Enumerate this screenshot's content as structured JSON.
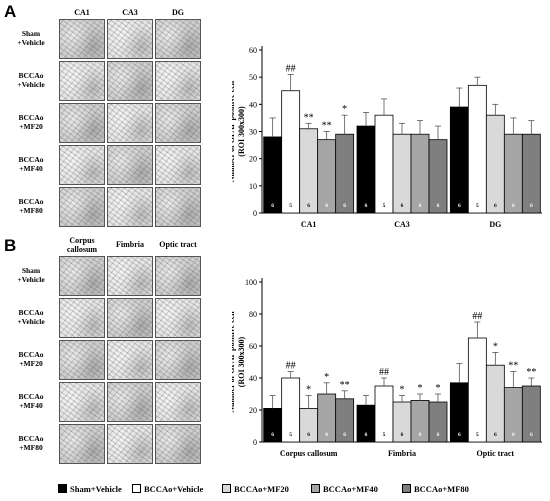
{
  "panel_a": {
    "letter": "A",
    "columns": [
      "CA1",
      "CA3",
      "DG"
    ],
    "rows": [
      [
        "Sham",
        "+Vehicle"
      ],
      [
        "BCCAo",
        "+Vehicle"
      ],
      [
        "BCCAo",
        "+MF20"
      ],
      [
        "BCCAo",
        "+MF40"
      ],
      [
        "BCCAo",
        "+MF80"
      ]
    ]
  },
  "panel_b": {
    "letter": "B",
    "columns": [
      [
        "Corpus",
        "callosum"
      ],
      [
        "Fimbria"
      ],
      [
        "Optic tract"
      ]
    ],
    "rows": [
      [
        "Sham",
        "+Vehicle"
      ],
      [
        "BCCAo",
        "+Vehicle"
      ],
      [
        "BCCAo",
        "+MF20"
      ],
      [
        "BCCAo",
        "+MF40"
      ],
      [
        "BCCAo",
        "+MF80"
      ]
    ]
  },
  "legend": [
    {
      "label": "Sham+Vehicle",
      "color": "#000000"
    },
    {
      "label": "BCCAo+Vehicle",
      "color": "#ffffff"
    },
    {
      "label": "BCCAo+MF20",
      "color": "#d9d9d9"
    },
    {
      "label": "BCCAo+MF40",
      "color": "#a6a6a6"
    },
    {
      "label": "BCCAo+MF80",
      "color": "#7f7f7f"
    }
  ],
  "chart_data": [
    {
      "type": "bar",
      "ylabel": [
        "Number of GFAP positive cell",
        "(ROI 300x300)"
      ],
      "ylim": [
        0,
        60
      ],
      "yticks": [
        0,
        10,
        20,
        30,
        40,
        50,
        60
      ],
      "categories": [
        "CA1",
        "CA3",
        "DG"
      ],
      "series": [
        {
          "name": "Sham+Vehicle",
          "color": "#000000",
          "values": [
            28,
            32,
            39
          ],
          "errors": [
            7,
            5,
            7
          ]
        },
        {
          "name": "BCCAo+Vehicle",
          "color": "#ffffff",
          "values": [
            45,
            36,
            47
          ],
          "errors": [
            6,
            6,
            3
          ]
        },
        {
          "name": "BCCAo+MF20",
          "color": "#d9d9d9",
          "values": [
            31,
            29,
            36
          ],
          "errors": [
            2,
            4,
            4
          ]
        },
        {
          "name": "BCCAo+MF40",
          "color": "#a6a6a6",
          "values": [
            27,
            29,
            29
          ],
          "errors": [
            3,
            5,
            6
          ]
        },
        {
          "name": "BCCAo+MF80",
          "color": "#7f7f7f",
          "values": [
            29,
            27,
            29
          ],
          "errors": [
            7,
            5,
            5
          ]
        }
      ],
      "n_labels": [
        [
          "6",
          "6",
          "6"
        ],
        [
          "5",
          "5",
          "5"
        ],
        [
          "6",
          "6",
          "6"
        ],
        [
          "6",
          "6",
          "6"
        ],
        [
          "6",
          "6",
          "6"
        ]
      ],
      "annotations": [
        {
          "category": 0,
          "series": 1,
          "text": "##"
        },
        {
          "category": 0,
          "series": 2,
          "text": "**"
        },
        {
          "category": 0,
          "series": 3,
          "text": "**"
        },
        {
          "category": 0,
          "series": 4,
          "text": "*"
        }
      ]
    },
    {
      "type": "bar",
      "ylabel": [
        "Number of GFAP positive cell",
        "(ROI 300x300)"
      ],
      "ylim": [
        0,
        100
      ],
      "yticks": [
        0,
        20,
        40,
        60,
        80,
        100
      ],
      "categories": [
        "Corpus callosum",
        "Fimbria",
        "Optic tract"
      ],
      "series": [
        {
          "name": "Sham+Vehicle",
          "color": "#000000",
          "values": [
            21,
            23,
            37
          ],
          "errors": [
            8,
            6,
            12
          ]
        },
        {
          "name": "BCCAo+Vehicle",
          "color": "#ffffff",
          "values": [
            40,
            35,
            65
          ],
          "errors": [
            4,
            5,
            10
          ]
        },
        {
          "name": "BCCAo+MF20",
          "color": "#d9d9d9",
          "values": [
            21,
            25,
            48
          ],
          "errors": [
            8,
            4,
            8
          ]
        },
        {
          "name": "BCCAo+MF40",
          "color": "#a6a6a6",
          "values": [
            30,
            26,
            34
          ],
          "errors": [
            7,
            4,
            10
          ]
        },
        {
          "name": "BCCAo+MF80",
          "color": "#7f7f7f",
          "values": [
            27,
            25,
            35
          ],
          "errors": [
            5,
            5,
            5
          ]
        }
      ],
      "n_labels": [
        [
          "6",
          "6",
          "6"
        ],
        [
          "5",
          "5",
          "5"
        ],
        [
          "6",
          "6",
          "6"
        ],
        [
          "6",
          "6",
          "6"
        ],
        [
          "6",
          "6",
          "6"
        ]
      ],
      "annotations": [
        {
          "category": 0,
          "series": 1,
          "text": "##"
        },
        {
          "category": 0,
          "series": 2,
          "text": "*"
        },
        {
          "category": 0,
          "series": 3,
          "text": "*"
        },
        {
          "category": 0,
          "series": 4,
          "text": "**"
        },
        {
          "category": 1,
          "series": 1,
          "text": "##"
        },
        {
          "category": 1,
          "series": 2,
          "text": "*"
        },
        {
          "category": 1,
          "series": 3,
          "text": "*"
        },
        {
          "category": 1,
          "series": 4,
          "text": "*"
        },
        {
          "category": 2,
          "series": 1,
          "text": "##"
        },
        {
          "category": 2,
          "series": 2,
          "text": "*"
        },
        {
          "category": 2,
          "series": 3,
          "text": "**"
        },
        {
          "category": 2,
          "series": 4,
          "text": "**"
        }
      ]
    }
  ]
}
